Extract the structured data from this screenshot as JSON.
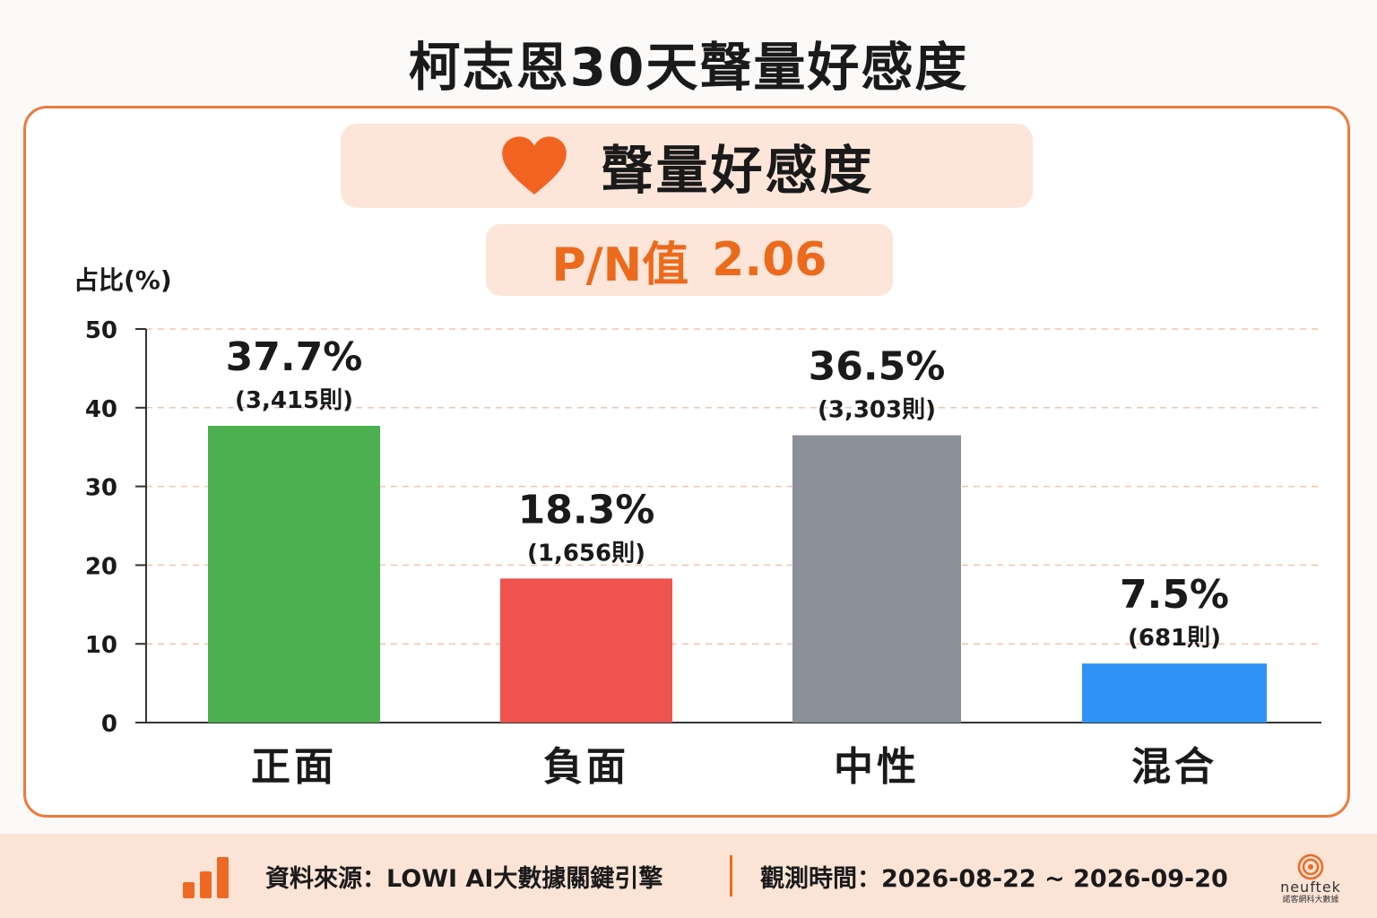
{
  "page": {
    "title": "柯志恩30天聲量好感度",
    "section_label": "聲量好感度",
    "section_icon": "heart-icon",
    "pn_label": "P/N值",
    "pn_value": "2.06",
    "accent_color": "#ec6a1c"
  },
  "chart_data": {
    "type": "bar",
    "ylabel": "占比(%)",
    "ylim": [
      0,
      50
    ],
    "yticks": [
      0,
      10,
      20,
      30,
      40,
      50
    ],
    "grid": true,
    "categories": [
      "正面",
      "負面",
      "中性",
      "混合"
    ],
    "values": [
      37.7,
      18.3,
      36.5,
      7.5
    ],
    "value_labels": [
      "37.7%",
      "18.3%",
      "36.5%",
      "7.5%"
    ],
    "count_labels": [
      "(3,415則)",
      "(1,656則)",
      "(3,303則)",
      "(681則)"
    ],
    "colors": [
      "#4caf50",
      "#ef5350",
      "#8c9099",
      "#2f93f5"
    ]
  },
  "footer": {
    "source": "資料來源：LOWI AI大數據關鍵引擎",
    "period": "觀測時間：2026-08-22 ~ 2026-09-20",
    "source_icon": "bar-chart-icon",
    "brand_name": "neuftek",
    "brand_sub": "諾客網科大數據"
  }
}
